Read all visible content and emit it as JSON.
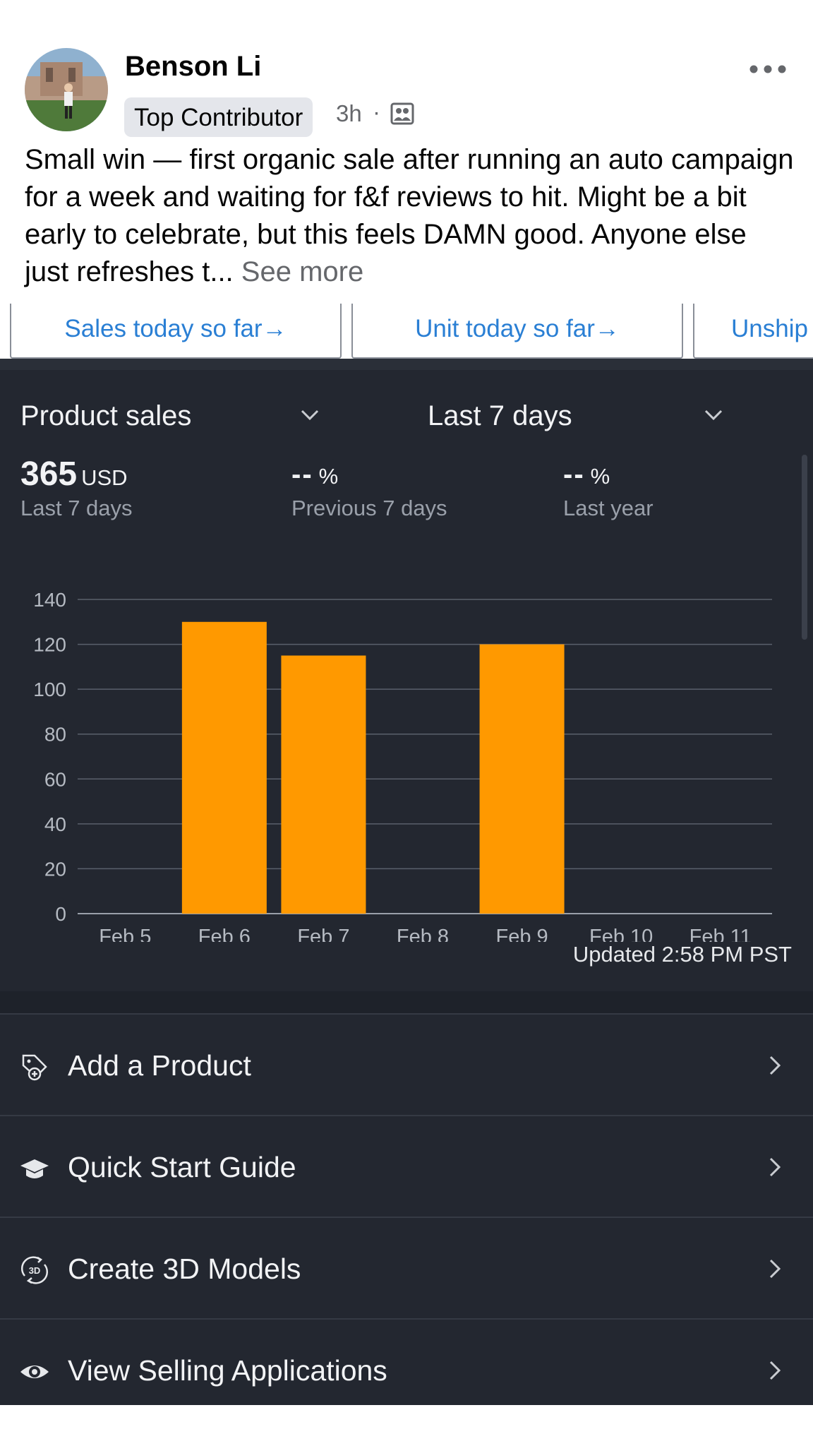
{
  "post": {
    "author": "Benson Li",
    "badge": "Top Contributor",
    "time": "3h",
    "separator": "·",
    "audience_icon": "public-group-icon",
    "more_icon": "more-dots-icon",
    "text": "Small win — first organic sale after running an auto campaign for a week and waiting for f&f reviews to hit. Might be a bit early to celebrate, but this feels DAMN good. Anyone else just refreshes t...",
    "see_more": "See more"
  },
  "seller_app": {
    "top_tabs": [
      {
        "label": "Sales today so far",
        "icon": "arrow-right-icon"
      },
      {
        "label": "Unit today so far",
        "icon": "arrow-right-icon"
      },
      {
        "label": "Unship"
      }
    ],
    "metric_selector": "Product sales",
    "range_selector": "Last 7 days",
    "stats": [
      {
        "value": "365",
        "unit": "USD",
        "label": "Last 7 days"
      },
      {
        "value": "--",
        "unit": "%",
        "label": "Previous 7 days"
      },
      {
        "value": "--",
        "unit": "%",
        "label": "Last year"
      }
    ],
    "updated": "Updated 2:58 PM PST",
    "menu": [
      {
        "label": "Add a Product",
        "icon": "add-product-tag-icon"
      },
      {
        "label": "Quick Start Guide",
        "icon": "graduation-cap-icon"
      },
      {
        "label": "Create 3D Models",
        "icon": "rotate-3d-icon"
      },
      {
        "label": "View Selling Applications",
        "icon": "eye-icon"
      }
    ]
  },
  "colors": {
    "bar": "#ff9900",
    "app_background": "#232730",
    "link_blue": "#2a7fd4"
  },
  "chart_data": {
    "type": "bar",
    "categories": [
      "Feb 5",
      "Feb 6",
      "Feb 7",
      "Feb 8",
      "Feb 9",
      "Feb 10",
      "Feb 11"
    ],
    "values": [
      0,
      130,
      115,
      0,
      120,
      0,
      0
    ],
    "yticks": [
      "0",
      "20",
      "40",
      "60",
      "80",
      "100",
      "120",
      "140"
    ],
    "ylim": [
      0,
      140
    ],
    "grid": true
  }
}
